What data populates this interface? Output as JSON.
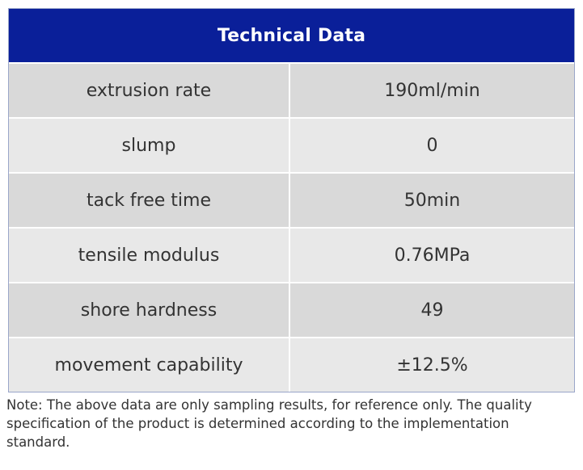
{
  "table": {
    "title": "Technical Data",
    "rows": [
      {
        "property": "extrusion rate",
        "value": "190ml/min"
      },
      {
        "property": "slump",
        "value": "0"
      },
      {
        "property": "tack free time",
        "value": "50min"
      },
      {
        "property": "tensile modulus",
        "value": "0.76MPa"
      },
      {
        "property": "shore hardness",
        "value": "49"
      },
      {
        "property": "movement capability",
        "value": "±12.5%"
      }
    ]
  },
  "note": "Note: The above data are only sampling results, for reference only. The quality specification of the product is determined according to the implementation standard.",
  "colors": {
    "header_bg": "#0a1f99",
    "row_dark": "#d9d9d9",
    "row_light": "#e8e8e8",
    "text": "#333333"
  }
}
